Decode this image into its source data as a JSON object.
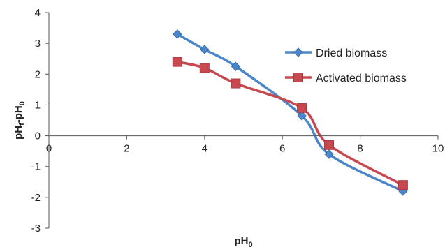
{
  "chart_data": {
    "type": "scatter",
    "mode": "smooth-line-markers",
    "xlabel": {
      "main": "pH",
      "sub": "0"
    },
    "ylabel": {
      "p1": "pH",
      "s1": "f",
      "p2": "-pH",
      "s2": "0"
    },
    "xlim": [
      0,
      10
    ],
    "ylim": [
      -3,
      4
    ],
    "xticks": [
      0,
      2,
      4,
      6,
      8,
      10
    ],
    "yticks": [
      -3,
      -2,
      -1,
      0,
      1,
      2,
      3,
      4
    ],
    "grid": false,
    "legend": "right",
    "series": [
      {
        "name": "Dried biomass",
        "color": "#4a86c8",
        "marker": "diamond",
        "x": [
          3.3,
          4.0,
          4.8,
          6.5,
          7.2,
          9.1
        ],
        "y": [
          3.3,
          2.8,
          2.25,
          0.65,
          -0.6,
          -1.8
        ]
      },
      {
        "name": "Activated biomass",
        "color": "#c8484f",
        "marker": "square",
        "x": [
          3.3,
          4.0,
          4.8,
          6.5,
          7.2,
          9.1
        ],
        "y": [
          2.4,
          2.2,
          1.7,
          0.9,
          -0.3,
          -1.6
        ]
      }
    ]
  }
}
